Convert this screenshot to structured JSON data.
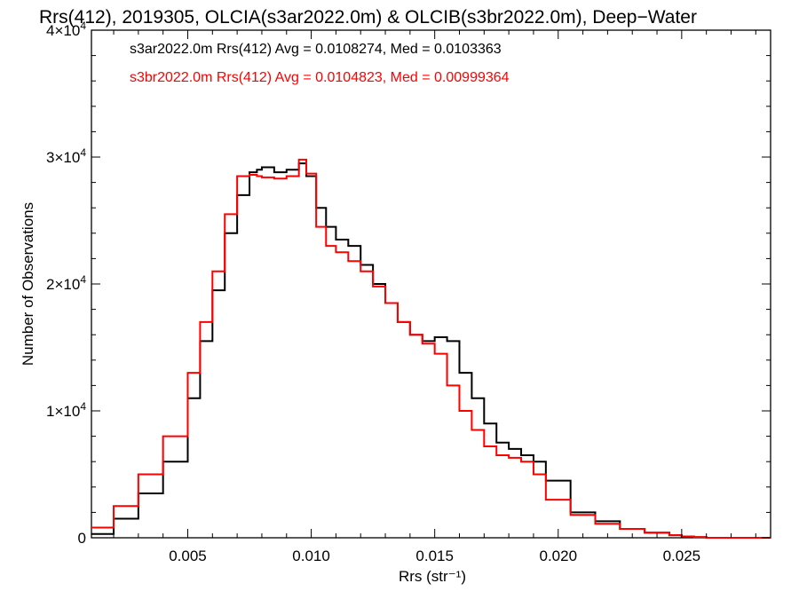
{
  "chart_data": {
    "type": "line",
    "title": "Rrs(412), 2019305, OLCIA(s3ar2022.0m) & OLCIB(s3br2022.0m), Deep−Water",
    "xlabel": "Rrs (str⁻¹)",
    "ylabel": "Number of Observations",
    "xlim": [
      0.0011,
      0.0286
    ],
    "ylim": [
      0,
      40000
    ],
    "x_ticks": [
      0.005,
      0.01,
      0.015,
      0.02,
      0.025
    ],
    "x_tick_labels": [
      "0.005",
      "0.010",
      "0.015",
      "0.020",
      "0.025"
    ],
    "y_ticks": [
      0,
      10000,
      20000,
      30000,
      40000
    ],
    "y_tick_labels": [
      {
        "base": "0",
        "exp": ""
      },
      {
        "base": "1×10",
        "exp": "4"
      },
      {
        "base": "2×10",
        "exp": "4"
      },
      {
        "base": "3×10",
        "exp": "4"
      },
      {
        "base": "4×10",
        "exp": "4"
      }
    ],
    "grid": false,
    "legend_position": "top-left",
    "series": [
      {
        "name": "s3ar2022.0m Rrs(412) Avg = 0.0108274, Med = 0.0103363",
        "color": "#000000",
        "x": [
          0.0011,
          0.002,
          0.003,
          0.004,
          0.005,
          0.0055,
          0.006,
          0.0065,
          0.007,
          0.0075,
          0.0078,
          0.008,
          0.0085,
          0.009,
          0.0095,
          0.0098,
          0.0102,
          0.0106,
          0.011,
          0.0115,
          0.012,
          0.0125,
          0.013,
          0.0135,
          0.014,
          0.0145,
          0.015,
          0.0155,
          0.016,
          0.0165,
          0.017,
          0.0175,
          0.018,
          0.0185,
          0.019,
          0.0195,
          0.0205,
          0.0215,
          0.0225,
          0.0235,
          0.0245,
          0.025,
          0.0255,
          0.026,
          0.027,
          0.0286
        ],
        "y": [
          300,
          1500,
          3500,
          6000,
          11000,
          15500,
          19500,
          24000,
          27000,
          28800,
          29000,
          29200,
          28800,
          29000,
          29500,
          28500,
          26000,
          24500,
          23500,
          23000,
          21500,
          20000,
          18500,
          17000,
          16000,
          15500,
          15800,
          15500,
          13000,
          11000,
          9000,
          7500,
          7000,
          6500,
          6000,
          4500,
          2000,
          1300,
          700,
          400,
          200,
          100,
          50,
          0,
          0,
          0
        ],
        "name_visible": true
      },
      {
        "name": "s3br2022.0m Rrs(412) Avg = 0.0104823, Med = 0.00999364",
        "color": "#ff0000",
        "x": [
          0.0011,
          0.002,
          0.003,
          0.004,
          0.005,
          0.0055,
          0.006,
          0.0065,
          0.007,
          0.0075,
          0.0078,
          0.008,
          0.0085,
          0.009,
          0.0095,
          0.0098,
          0.0102,
          0.0106,
          0.011,
          0.0115,
          0.012,
          0.0125,
          0.013,
          0.0135,
          0.014,
          0.0145,
          0.015,
          0.0155,
          0.016,
          0.0165,
          0.017,
          0.0175,
          0.018,
          0.0185,
          0.019,
          0.0195,
          0.0205,
          0.0215,
          0.0225,
          0.0235,
          0.0245,
          0.025,
          0.0255,
          0.026,
          0.027,
          0.0286
        ],
        "y": [
          800,
          2500,
          5000,
          8000,
          13000,
          17000,
          21000,
          25500,
          28500,
          28600,
          28500,
          28400,
          28300,
          28500,
          29800,
          28700,
          24500,
          23000,
          22500,
          21800,
          21000,
          19800,
          18500,
          17000,
          16000,
          15300,
          14500,
          12000,
          10000,
          8500,
          7200,
          6500,
          6300,
          6000,
          5000,
          3000,
          1800,
          1100,
          700,
          400,
          200,
          100,
          50,
          0,
          0,
          0
        ]
      }
    ]
  }
}
